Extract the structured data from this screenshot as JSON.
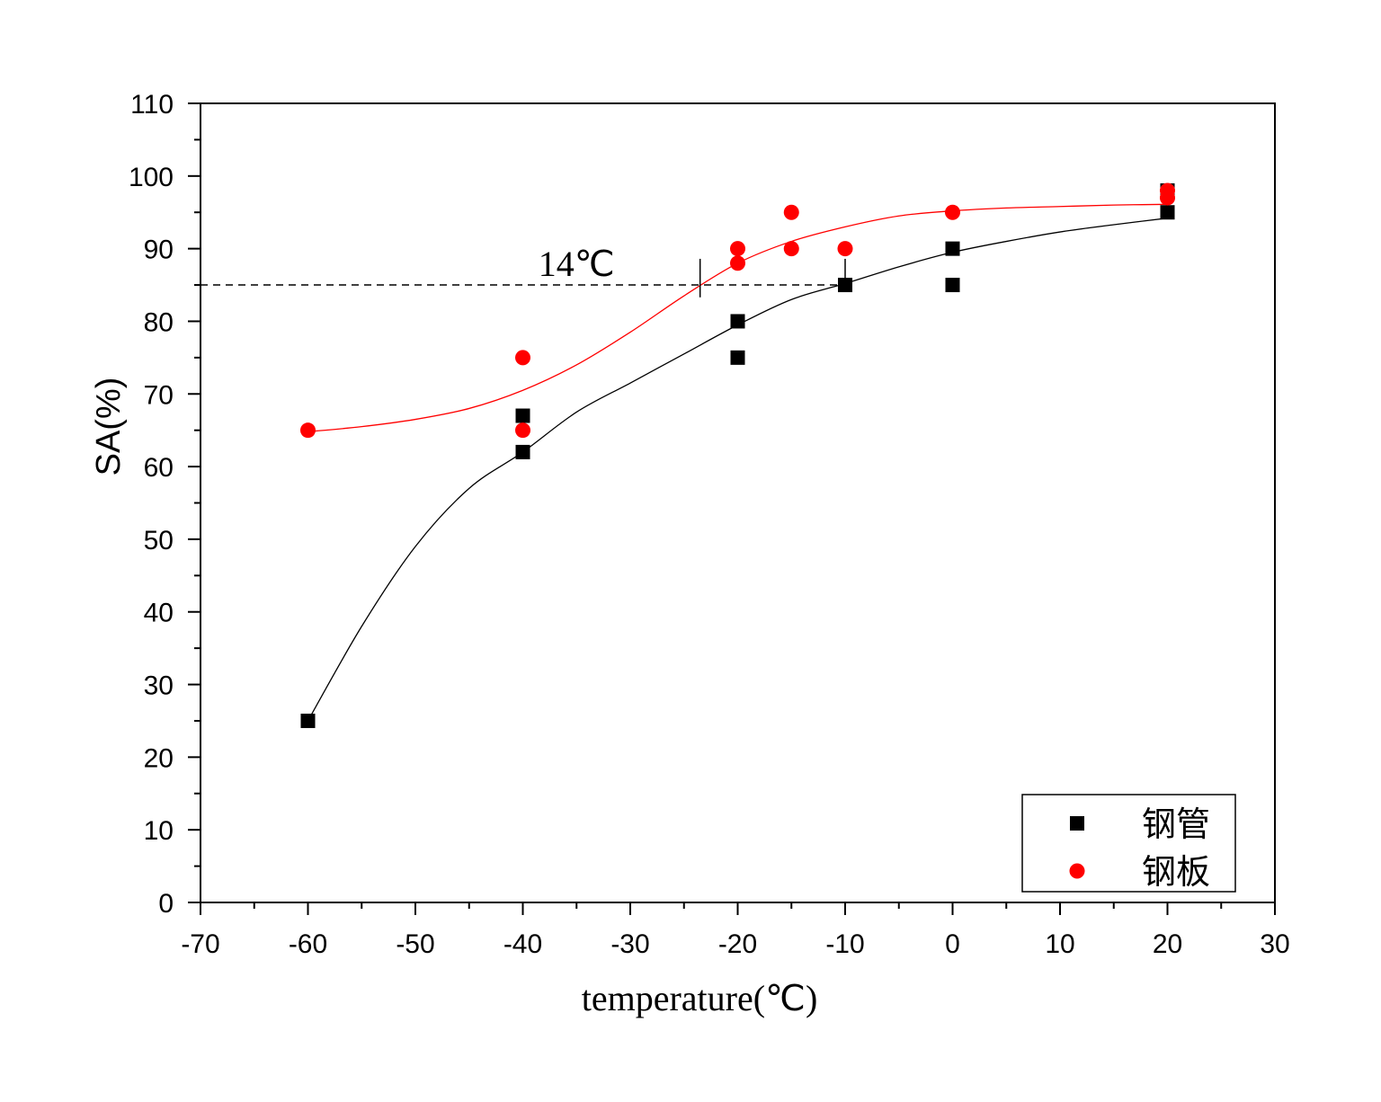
{
  "chart_data": {
    "type": "scatter",
    "xlabel": "temperature(℃)",
    "ylabel": "SA(%)",
    "xlim": [
      -70,
      30
    ],
    "ylim": [
      0,
      110
    ],
    "x_ticks": [
      -70,
      -60,
      -50,
      -40,
      -30,
      -20,
      -10,
      0,
      10,
      20,
      30
    ],
    "y_ticks": [
      0,
      10,
      20,
      30,
      40,
      50,
      60,
      70,
      80,
      90,
      100,
      110
    ],
    "grid": false,
    "legend_position": "bottom-right",
    "series": [
      {
        "name": "钢管",
        "marker": "square",
        "color": "#000000",
        "points": [
          [
            -60,
            25
          ],
          [
            -40,
            67
          ],
          [
            -40,
            62
          ],
          [
            -20,
            80
          ],
          [
            -20,
            75
          ],
          [
            -10,
            85
          ],
          [
            0,
            90
          ],
          [
            0,
            85
          ],
          [
            20,
            98
          ],
          [
            20,
            95
          ]
        ],
        "fit_curve": [
          [
            -60,
            25
          ],
          [
            -55,
            38
          ],
          [
            -50,
            49
          ],
          [
            -45,
            57
          ],
          [
            -40,
            62
          ],
          [
            -35,
            67.5
          ],
          [
            -30,
            71.5
          ],
          [
            -25,
            75.5
          ],
          [
            -20,
            79.5
          ],
          [
            -15,
            83
          ],
          [
            -10,
            85.2
          ],
          [
            -5,
            87.5
          ],
          [
            0,
            89.5
          ],
          [
            5,
            91
          ],
          [
            10,
            92.3
          ],
          [
            15,
            93.3
          ],
          [
            20,
            94.2
          ]
        ]
      },
      {
        "name": "钢板",
        "marker": "circle",
        "color": "#ff0000",
        "points": [
          [
            -60,
            65
          ],
          [
            -40,
            75
          ],
          [
            -40,
            65
          ],
          [
            -20,
            90
          ],
          [
            -20,
            88
          ],
          [
            -15,
            95
          ],
          [
            -15,
            90
          ],
          [
            -10,
            90
          ],
          [
            0,
            95
          ],
          [
            20,
            98
          ],
          [
            20,
            97
          ]
        ],
        "fit_curve": [
          [
            -60,
            64.8
          ],
          [
            -55,
            65.5
          ],
          [
            -50,
            66.5
          ],
          [
            -45,
            68
          ],
          [
            -40,
            70.5
          ],
          [
            -35,
            74
          ],
          [
            -30,
            78.5
          ],
          [
            -25,
            83.5
          ],
          [
            -20,
            88
          ],
          [
            -15,
            91
          ],
          [
            -10,
            93
          ],
          [
            -5,
            94.5
          ],
          [
            0,
            95.2
          ],
          [
            5,
            95.6
          ],
          [
            10,
            95.8
          ],
          [
            15,
            96
          ],
          [
            20,
            96.1
          ]
        ]
      }
    ],
    "reference_line": {
      "y": 85,
      "x_from": -70,
      "x_to": -10,
      "style": "dashed"
    },
    "markers_vertical": [
      {
        "x": -23.5,
        "y_from": 83.3,
        "y_to": 88.6
      },
      {
        "x": -10,
        "y_from": 85,
        "y_to": 88.6
      }
    ],
    "annotations": [
      {
        "text": "14℃",
        "x": -35,
        "y": 87.5
      }
    ]
  }
}
